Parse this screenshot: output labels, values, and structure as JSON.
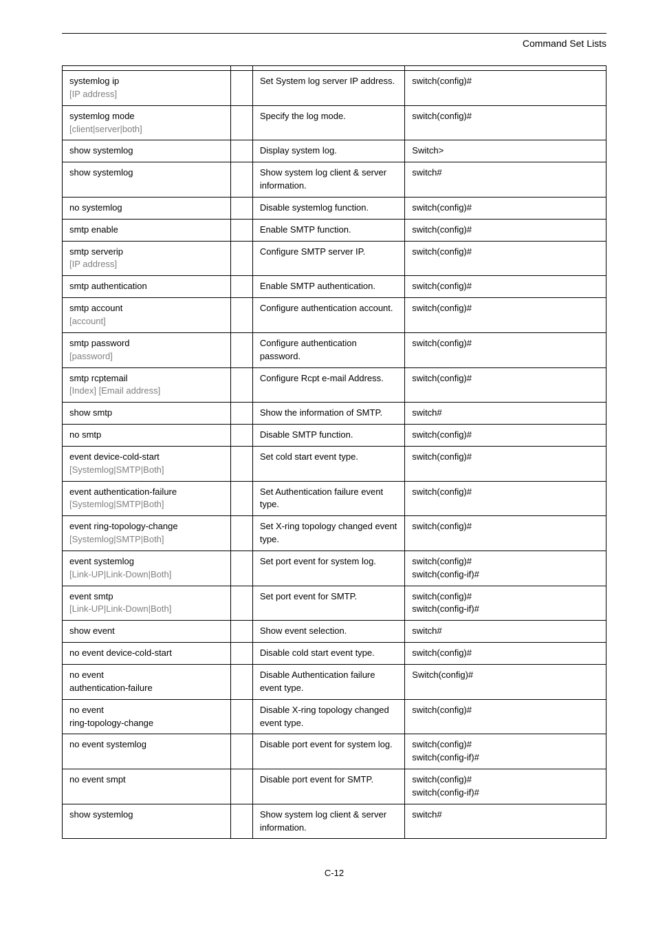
{
  "header": {
    "title": "Command Set Lists"
  },
  "footer": {
    "page": "C-12"
  },
  "rows": [
    {
      "cmd": [
        "systemlog ip"
      ],
      "gray": [
        "[IP address]"
      ],
      "desc": "Set System log server IP address.",
      "mode": "switch(config)#"
    },
    {
      "cmd": [
        "systemlog mode"
      ],
      "gray": [
        "[client|server|both]"
      ],
      "desc": "Specify the log mode.",
      "mode": "switch(config)#"
    },
    {
      "cmd": [
        "show systemlog"
      ],
      "desc": "Display system log.",
      "mode": "Switch>"
    },
    {
      "cmd": [
        "show systemlog"
      ],
      "desc": "Show system log client & server information.",
      "mode": "switch#"
    },
    {
      "cmd": [
        "no systemlog"
      ],
      "desc": "Disable systemlog function.",
      "mode": "switch(config)#"
    },
    {
      "cmd": [
        "smtp enable"
      ],
      "desc": "Enable SMTP function.",
      "mode": "switch(config)#"
    },
    {
      "cmd": [
        "smtp serverip"
      ],
      "gray": [
        "[IP address]"
      ],
      "desc": "Configure SMTP server IP.",
      "mode": "switch(config)#"
    },
    {
      "cmd": [
        "smtp authentication"
      ],
      "desc": "Enable SMTP authentication.",
      "mode": "switch(config)#"
    },
    {
      "cmd": [
        "smtp account"
      ],
      "gray": [
        "[account]"
      ],
      "desc": "Configure authentication account.",
      "mode": "switch(config)#"
    },
    {
      "cmd": [
        "smtp password"
      ],
      "gray": [
        "[password]"
      ],
      "desc": "Configure authentication password.",
      "mode": "switch(config)#"
    },
    {
      "cmd": [
        "smtp rcptemail"
      ],
      "gray": [
        "[Index] [Email address]"
      ],
      "desc": "Configure Rcpt e-mail Address.",
      "mode": "switch(config)#"
    },
    {
      "cmd": [
        "show smtp"
      ],
      "desc": "Show the information of SMTP.",
      "mode": "switch#"
    },
    {
      "cmd": [
        "no smtp"
      ],
      "desc": "Disable SMTP function.",
      "mode": "switch(config)#"
    },
    {
      "cmd": [
        "event device-cold-start"
      ],
      "gray": [
        "[Systemlog|SMTP|Both]"
      ],
      "desc": "Set cold start event type.",
      "mode": "switch(config)#"
    },
    {
      "cmd": [
        "event authentication-failure"
      ],
      "gray": [
        "[Systemlog|SMTP|Both]"
      ],
      "desc": "Set Authentication failure event type.",
      "mode": "switch(config)#"
    },
    {
      "cmd": [
        "event ring-topology-change"
      ],
      "gray": [
        "[Systemlog|SMTP|Both]"
      ],
      "desc": "Set X-ring topology changed event type.",
      "mode": "switch(config)#"
    },
    {
      "cmd": [
        "event systemlog"
      ],
      "gray": [
        "[Link-UP|Link-Down|Both]"
      ],
      "desc": "Set port event for system log.",
      "mode": "switch(config)#\nswitch(config-if)#"
    },
    {
      "cmd": [
        "event smtp"
      ],
      "gray": [
        "[Link-UP|Link-Down|Both]"
      ],
      "desc": "Set port event for SMTP.",
      "mode": "switch(config)#\nswitch(config-if)#"
    },
    {
      "cmd": [
        "show event"
      ],
      "desc": "Show event selection.",
      "mode": "switch#"
    },
    {
      "cmd": [
        "no event device-cold-start"
      ],
      "desc": "Disable cold start event type.",
      "mode": "switch(config)#"
    },
    {
      "cmd": [
        "no event",
        "authentication-failure"
      ],
      "desc": "Disable Authentication failure event type.",
      "mode": "Switch(config)#"
    },
    {
      "cmd": [
        "no event",
        "ring-topology-change"
      ],
      "desc": "Disable X-ring topology changed event type.",
      "mode": "switch(config)#"
    },
    {
      "cmd": [
        "no event systemlog"
      ],
      "desc": "Disable port event for system log.",
      "mode": "switch(config)#\nswitch(config-if)#"
    },
    {
      "cmd": [
        "no event smpt"
      ],
      "desc": "Disable port event for SMTP.",
      "mode": "switch(config)#\nswitch(config-if)#"
    },
    {
      "cmd": [
        "show systemlog"
      ],
      "desc": "Show system log client & server information.",
      "mode": "switch#"
    }
  ]
}
